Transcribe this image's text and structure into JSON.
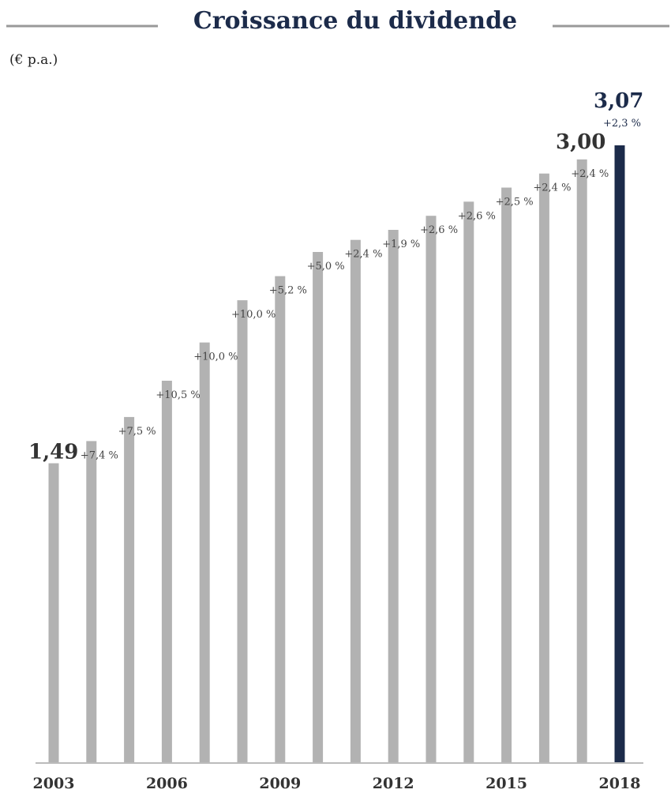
{
  "chart_data": {
    "type": "bar",
    "title": "Croissance du dividende",
    "unit_label": "(€ p.a.)",
    "categories": [
      "2003",
      "2004",
      "2005",
      "2006",
      "2007",
      "2008",
      "2009",
      "2010",
      "2011",
      "2012",
      "2013",
      "2014",
      "2015",
      "2016",
      "2017",
      "2018"
    ],
    "tick_labels": [
      "2003",
      "2006",
      "2009",
      "2012",
      "2015",
      "2018"
    ],
    "values": [
      1.49,
      1.6,
      1.72,
      1.9,
      2.09,
      2.3,
      2.42,
      2.54,
      2.6,
      2.65,
      2.72,
      2.79,
      2.86,
      2.93,
      3.0,
      3.07
    ],
    "growth_labels": [
      "",
      "+7,4 %",
      "+7,5 %",
      "+10,5 %",
      "+10,0 %",
      "+10,0 %",
      "+5,2 %",
      "+5,0 %",
      "+2,4 %",
      "+1,9 %",
      "+2,6 %",
      "+2,6 %",
      "+2,5 %",
      "+2,4 %",
      "+2,4 %",
      "+2,3 %"
    ],
    "value_labels": [
      {
        "index": 0,
        "text": "1,49"
      },
      {
        "index": 14,
        "text": "3,00"
      },
      {
        "index": 15,
        "text": "3,07"
      }
    ],
    "ylim": [
      0,
      3.07
    ],
    "grid": false,
    "colors": {
      "bar": "#b2b2b2",
      "highlight": "#1c2b4a",
      "title": "#1c2b4a",
      "rule": "#999999"
    }
  }
}
